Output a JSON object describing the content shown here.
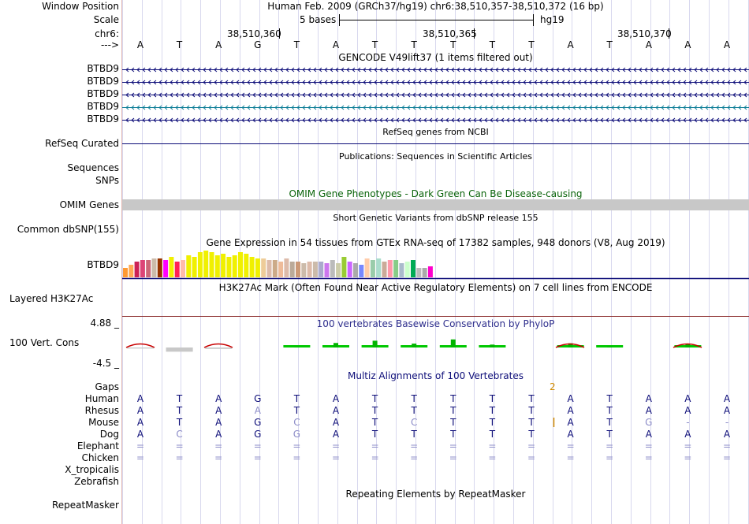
{
  "colors": {
    "gencode_blue": "#0c0c78",
    "gencode_teal": "#0c7d96",
    "refseq_blue": "#0c0c78",
    "omim_green": "#0a640a",
    "omim_bar": "#c8c8c8",
    "conservation_blue": "#2d2d8c",
    "conservation_red": "#8c2d2d",
    "gaps_orange": "#d28c00",
    "vertebrate_green": "#0a640a",
    "mismatch_gray": "#8c8cc8"
  },
  "ruler": {
    "window_position_label": "Window Position",
    "scale_label": "Scale",
    "chrom_label": "chr6:",
    "arrow_label": "--->",
    "title": "Human Feb. 2009 (GRCh37/hg19)   chr6:38,510,357-38,510,372 (16 bp)",
    "scale_text": "5 bases",
    "assembly": "hg19",
    "coordinates": [
      "38,510,360",
      "38,510,365",
      "38,510,370"
    ],
    "bases": [
      "A",
      "T",
      "A",
      "G",
      "T",
      "A",
      "T",
      "T",
      "T",
      "T",
      "T",
      "A",
      "T",
      "A",
      "A",
      "A"
    ]
  },
  "gencode": {
    "caption": "GENCODE V49lift37 (1 items filtered out)",
    "rows": [
      {
        "label": "BTBD9",
        "color": "gencode_blue"
      },
      {
        "label": "BTBD9",
        "color": "gencode_blue"
      },
      {
        "label": "BTBD9",
        "color": "gencode_blue"
      },
      {
        "label": "BTBD9",
        "color": "gencode_teal"
      },
      {
        "label": "BTBD9",
        "color": "gencode_blue"
      }
    ]
  },
  "refseq": {
    "caption": "RefSeq genes from NCBI",
    "label": "RefSeq Curated"
  },
  "publications": {
    "caption": "Publications: Sequences in Scientific Articles",
    "label_sequences": "Sequences",
    "label_snps": "SNPs"
  },
  "omim": {
    "caption": "OMIM Gene Phenotypes - Dark Green Can Be Disease-causing",
    "label": "OMIM Genes"
  },
  "dbsnp": {
    "caption": "Short Genetic Variants from dbSNP release 155",
    "label": "Common dbSNP(155)"
  },
  "gtex": {
    "caption": "Gene Expression in 54 tissues from GTEx RNA-seq of 17382 samples, 948 donors (V8, Aug 2019)",
    "label": "BTBD9",
    "colors": [
      "#ff9933",
      "#ffaa55",
      "#cc2255",
      "#dd4477",
      "#cc6677",
      "#ccbbaa",
      "#993300",
      "#ff00ff",
      "#f0f000",
      "#ff2255",
      "#ffbbaa",
      "#f0f000",
      "#f0f000",
      "#f0f000",
      "#f0f000",
      "#f0f000",
      "#f0f000",
      "#f0f000",
      "#f0f000",
      "#f0f000",
      "#f0f000",
      "#f0f000",
      "#f0f000",
      "#f0f000",
      "#eecc99",
      "#ddbbaa",
      "#ccaa88",
      "#eebb99",
      "#ddbbaa",
      "#bbaa99",
      "#cc9977",
      "#ccbbaa",
      "#ddbbaa",
      "#ccbbaa",
      "#aaaacc",
      "#cc77ee",
      "#bbbbbb",
      "#ccccaa",
      "#99cc33",
      "#cc66ff",
      "#aaaaaa",
      "#7788ff",
      "#ffccaa",
      "#99ccaa",
      "#aaddcc",
      "#ccaa99",
      "#ff99aa",
      "#88cc88",
      "#aabbcc",
      "#ccffcc",
      "#00aa55",
      "#bbbbbb",
      "#aaaaaa",
      "#ff00cc"
    ],
    "values": [
      0.3,
      0.4,
      0.5,
      0.55,
      0.55,
      0.6,
      0.6,
      0.55,
      0.65,
      0.5,
      0.55,
      0.7,
      0.65,
      0.8,
      0.85,
      0.8,
      0.7,
      0.75,
      0.65,
      0.7,
      0.8,
      0.75,
      0.65,
      0.6,
      0.6,
      0.55,
      0.55,
      0.5,
      0.6,
      0.5,
      0.5,
      0.45,
      0.5,
      0.5,
      0.5,
      0.45,
      0.55,
      0.45,
      0.65,
      0.5,
      0.45,
      0.4,
      0.6,
      0.55,
      0.6,
      0.5,
      0.55,
      0.55,
      0.45,
      0.5,
      0.55,
      0.3,
      0.3,
      0.35
    ]
  },
  "h3k27ac": {
    "caption": "H3K27Ac Mark (Often Found Near Active Regulatory Elements) on 7 cell lines from ENCODE",
    "label": "Layered H3K27Ac"
  },
  "conservation": {
    "caption": "100 vertebrates Basewise Conservation by PhyloP",
    "label": "100 Vert. Cons",
    "max_label": "4.88 _",
    "min_label": "-4.5 _",
    "ylim": [
      -4.5,
      4.88
    ],
    "scores": [
      -0.3,
      -1.2,
      -0.4,
      0.0,
      0.2,
      1.4,
      2.1,
      1.2,
      2.5,
      0.9,
      0.0,
      1.3,
      0.3,
      0.0,
      1.0,
      0.0
    ]
  },
  "multiz": {
    "caption": "Multiz Alignments of 100 Vertebrates",
    "gaps_label": "Gaps",
    "gap_count": "2",
    "species": [
      {
        "name": "Human",
        "bases": [
          "A",
          "T",
          "A",
          "G",
          "T",
          "A",
          "T",
          "T",
          "T",
          "T",
          "T",
          "A",
          "T",
          "A",
          "A",
          "A"
        ]
      },
      {
        "name": "Rhesus",
        "bases": [
          "A",
          "T",
          "A",
          "A",
          "T",
          "A",
          "T",
          "T",
          "T",
          "T",
          "T",
          "A",
          "T",
          "A",
          "A",
          "A"
        ]
      },
      {
        "name": "Mouse",
        "bases": [
          "A",
          "T",
          "A",
          "G",
          "C",
          "A",
          "T",
          "C",
          "T",
          "T",
          "T",
          "A",
          "T",
          "G",
          "-",
          "-"
        ]
      },
      {
        "name": "Dog",
        "bases": [
          "A",
          "C",
          "A",
          "G",
          "G",
          "A",
          "T",
          "T",
          "T",
          "T",
          "T",
          "A",
          "T",
          "A",
          "A",
          "A"
        ]
      },
      {
        "name": "Elephant",
        "bases": [
          "=",
          "=",
          "=",
          "=",
          "=",
          "=",
          "=",
          "=",
          "=",
          "=",
          "=",
          "=",
          "=",
          "=",
          "=",
          "="
        ]
      },
      {
        "name": "Chicken",
        "bases": [
          "=",
          "=",
          "=",
          "=",
          "=",
          "=",
          "=",
          "=",
          "=",
          "=",
          "=",
          "=",
          "=",
          "=",
          "=",
          "="
        ]
      },
      {
        "name": "X_tropicalis",
        "bases": []
      },
      {
        "name": "Zebrafish",
        "bases": []
      }
    ]
  },
  "repeatmasker": {
    "caption": "Repeating Elements by RepeatMasker",
    "label": "RepeatMasker"
  }
}
